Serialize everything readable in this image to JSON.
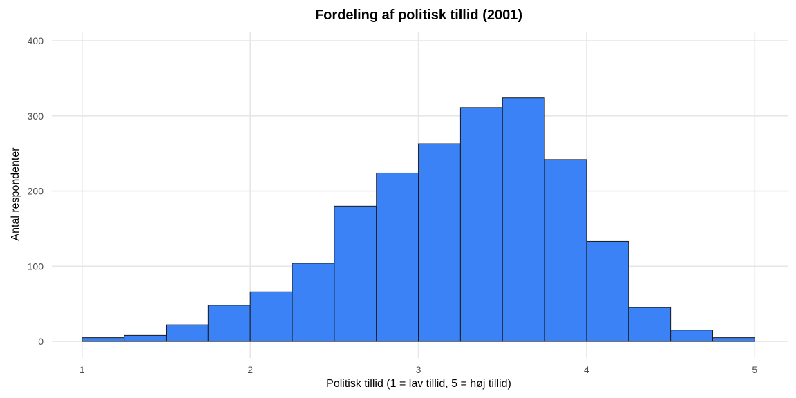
{
  "chart_data": {
    "type": "bar",
    "title": "Fordeling af politisk tillid (2001)",
    "xlabel": "Politisk tillid (1 = lav tillid, 5 = høj tillid)",
    "ylabel": "Antal respondenter",
    "xlim": [
      0.82,
      5.2
    ],
    "ylim": [
      -22,
      412
    ],
    "x_ticks": [
      1,
      2,
      3,
      4,
      5
    ],
    "y_ticks": [
      0,
      100,
      200,
      300,
      400
    ],
    "bin_width": 0.25,
    "bins": [
      {
        "x0": 1.0,
        "x1": 1.25,
        "count": 5
      },
      {
        "x0": 1.25,
        "count": 8,
        "x1": 1.5
      },
      {
        "x0": 1.5,
        "x1": 1.75,
        "count": 22
      },
      {
        "x0": 1.75,
        "x1": 2.0,
        "count": 48
      },
      {
        "x0": 2.0,
        "x1": 2.25,
        "count": 66
      },
      {
        "x0": 2.25,
        "x1": 2.5,
        "count": 104
      },
      {
        "x0": 2.5,
        "x1": 2.75,
        "count": 180
      },
      {
        "x0": 2.75,
        "x1": 3.0,
        "count": 224
      },
      {
        "x0": 3.0,
        "x1": 3.25,
        "count": 263
      },
      {
        "x0": 3.25,
        "x1": 3.5,
        "count": 311
      },
      {
        "x0": 3.5,
        "x1": 3.75,
        "count": 324
      },
      {
        "x0": 3.75,
        "x1": 4.0,
        "count": 242
      },
      {
        "x0": 4.0,
        "x1": 4.25,
        "count": 133
      },
      {
        "x0": 4.25,
        "x1": 4.5,
        "count": 45
      },
      {
        "x0": 4.5,
        "x1": 4.75,
        "count": 15
      },
      {
        "x0": 4.75,
        "x1": 5.0,
        "count": 5
      }
    ],
    "grid": true,
    "legend": "none",
    "bar_fill": "#3b82f6",
    "bar_outline": "#1a1a1a"
  }
}
